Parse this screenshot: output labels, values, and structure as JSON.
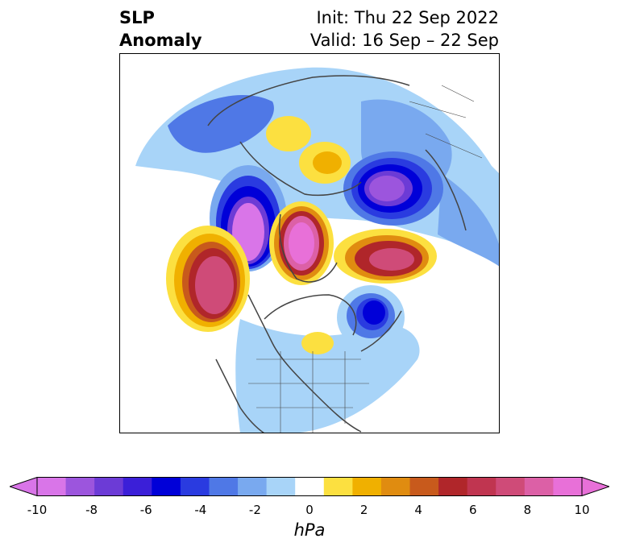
{
  "title": {
    "left_line1": "SLP",
    "left_line2": "Anomaly",
    "right_line1": "Init: Thu 22 Sep 2022",
    "right_line2": "Valid: 16 Sep – 22 Sep"
  },
  "colorbar": {
    "unit_label": "hPa",
    "extend": "both",
    "ticks": [
      "-10",
      "-8",
      "-6",
      "-4",
      "-2",
      "0",
      "2",
      "4",
      "6",
      "8",
      "10"
    ],
    "bounds": [
      -10,
      10
    ],
    "colors": [
      "#d975e8",
      "#9c55dd",
      "#6c3bd6",
      "#3b1fd8",
      "#0000d8",
      "#2a3be0",
      "#4f78e6",
      "#79a9ef",
      "#a8d4f8",
      "#ffffff",
      "#fce040",
      "#f0b000",
      "#e08c10",
      "#c85a1c",
      "#b0262a",
      "#c03550",
      "#cf4b78",
      "#dc60a6",
      "#e870d8"
    ],
    "under_color": "#d975e8",
    "over_color": "#e870d8"
  },
  "map": {
    "projection": "north polar stereographic",
    "field": "sea level pressure anomaly"
  }
}
